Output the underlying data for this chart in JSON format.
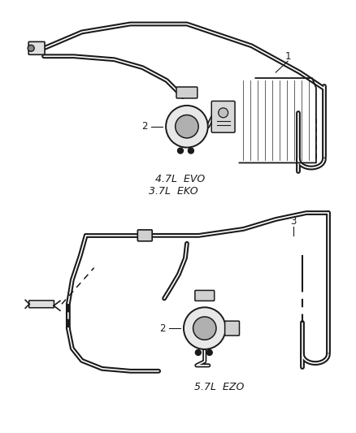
{
  "background_color": "#ffffff",
  "line_color": "#1a1a1a",
  "text_color": "#1a1a1a",
  "label1": "1",
  "label2": "2",
  "label3": "3",
  "label_evo": "4.7L  EVO",
  "label_eko": "3.7L  EKO",
  "label_ezo": "5.7L  EZO",
  "figsize": [
    4.38,
    5.33
  ],
  "dpi": 100
}
